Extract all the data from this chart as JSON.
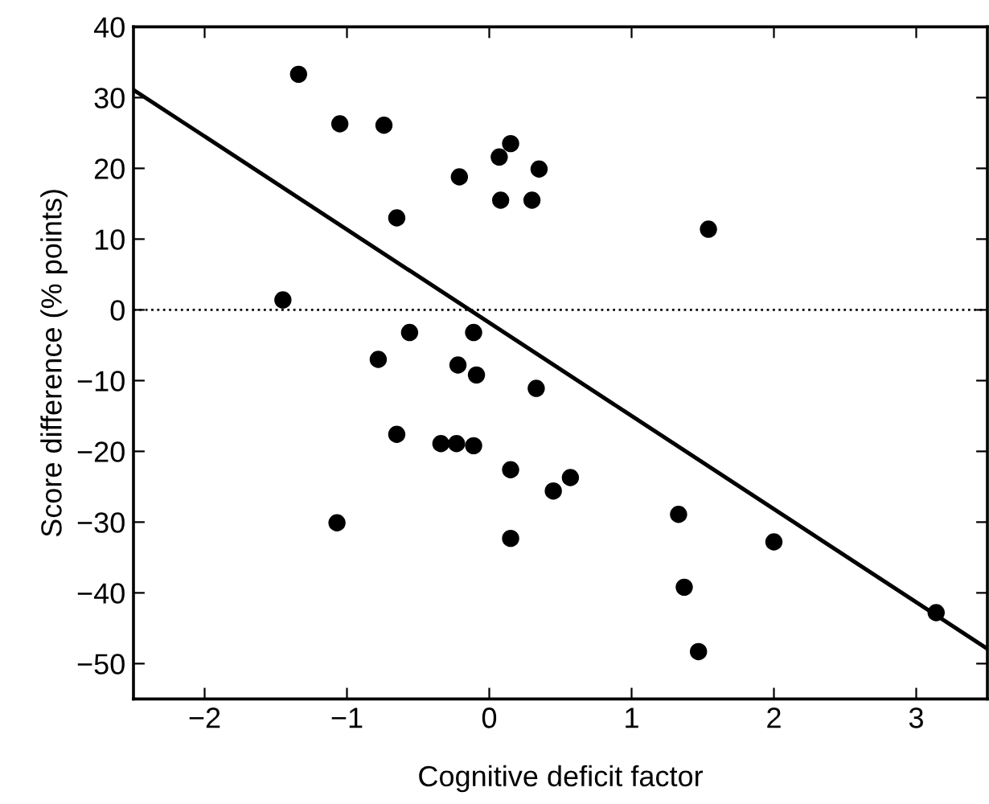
{
  "chart_data": {
    "type": "scatter",
    "xlabel": "Cognitive deficit factor",
    "ylabel": "Score difference (% points)",
    "xlim": [
      -2.5,
      3.5
    ],
    "xticks": [
      {
        "value": -2,
        "label": "−2"
      },
      {
        "value": -1,
        "label": "−1"
      },
      0,
      1,
      2,
      3
    ],
    "ylim": [
      -55,
      40
    ],
    "yticks": [
      {
        "value": -50,
        "label": "−50"
      },
      {
        "value": -40,
        "label": "−40"
      },
      {
        "value": -30,
        "label": "−30"
      },
      {
        "value": -20,
        "label": "−20"
      },
      {
        "value": -10,
        "label": "−10"
      },
      0,
      10,
      20,
      30,
      40
    ],
    "grid": false,
    "legend": false,
    "marker": "circle",
    "ref_lines": [
      {
        "axis": "y",
        "value": 0,
        "color": "#000000",
        "line_style": "dotted"
      }
    ],
    "series": [
      {
        "color": "#000000",
        "x": [
          -1.34,
          -1.45,
          -1.05,
          -0.74,
          -0.65,
          -0.78,
          -0.56,
          -0.21,
          -0.22,
          -0.11,
          -0.09,
          0.07,
          0.08,
          0.15,
          0.35,
          0.3,
          1.54,
          0.33,
          -1.07,
          -0.65,
          -0.34,
          -0.23,
          -0.11,
          0.15,
          0.15,
          0.45,
          0.57,
          1.33,
          2.0,
          1.37,
          1.47,
          3.14
        ],
        "values": [
          33.3,
          1.4,
          26.3,
          26.1,
          13.0,
          -7.0,
          -3.2,
          18.8,
          -7.8,
          -3.2,
          -9.2,
          21.6,
          15.5,
          23.5,
          19.9,
          15.5,
          11.4,
          -11.1,
          -30.1,
          -17.6,
          -18.9,
          -18.9,
          -19.2,
          -22.6,
          -32.3,
          -25.6,
          -23.7,
          -28.9,
          -32.8,
          -39.2,
          -48.3,
          -42.8
        ]
      },
      {
        "type": "line",
        "color": "#000000",
        "x": [
          -2.5,
          3.5
        ],
        "values": [
          31.1,
          -47.9
        ],
        "marker": "none",
        "line_style": "solid"
      }
    ]
  }
}
